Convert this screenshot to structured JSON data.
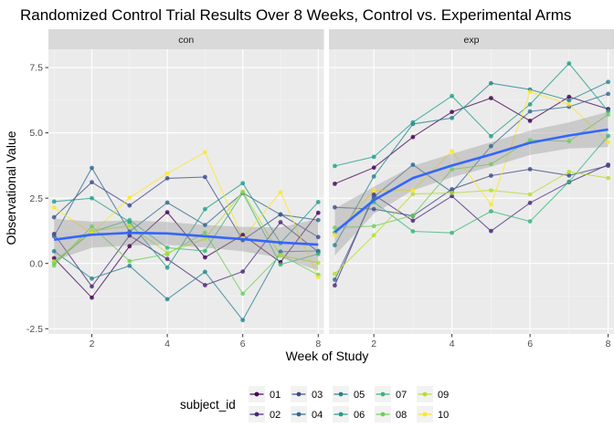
{
  "chart_data": {
    "type": "line",
    "title": "Randomized Control Trial Results Over 8 Weeks, Control vs. Experimental Arms",
    "xlabel": "Week of Study",
    "ylabel": "Observational Value",
    "xlim": [
      0.85,
      8.15
    ],
    "ylim": [
      -2.7,
      8.2
    ],
    "x_ticks": [
      2,
      4,
      6,
      8
    ],
    "y_ticks": [
      -2.5,
      0.0,
      2.5,
      5.0,
      7.5
    ],
    "y_tick_labels": [
      "-2.5",
      "0.0",
      "2.5",
      "5.0",
      "7.5"
    ],
    "grid": true,
    "panel_background": "#ebebeb",
    "strip_background": "#d9d9d9",
    "legend": {
      "title": "subject_id",
      "position": "bottom"
    },
    "smooth_color": "#3366ff",
    "ribbon_color": "#999999",
    "weeks": [
      1,
      2,
      3,
      4,
      5,
      6,
      7,
      8
    ],
    "subjects": [
      {
        "id": "01",
        "color": "#440154"
      },
      {
        "id": "02",
        "color": "#482878"
      },
      {
        "id": "03",
        "color": "#3e4a89"
      },
      {
        "id": "04",
        "color": "#31688e"
      },
      {
        "id": "05",
        "color": "#26828e"
      },
      {
        "id": "06",
        "color": "#1f9e89"
      },
      {
        "id": "07",
        "color": "#35b779"
      },
      {
        "id": "08",
        "color": "#6ece58"
      },
      {
        "id": "09",
        "color": "#b5de2b"
      },
      {
        "id": "10",
        "color": "#fde725"
      }
    ],
    "panels": [
      {
        "label": "con",
        "series": [
          {
            "subject": "01",
            "values": [
              0.2,
              -1.31,
              0.66,
              1.96,
              0.23,
              1.09,
              0.05,
              1.94
            ]
          },
          {
            "subject": "02",
            "values": [
              1.13,
              -0.88,
              1.07,
              0.17,
              -0.83,
              -0.31,
              1.58,
              0.44
            ]
          },
          {
            "subject": "03",
            "values": [
              1.77,
              3.11,
              2.22,
              3.26,
              3.31,
              0.89,
              1.88,
              1.01
            ]
          },
          {
            "subject": "04",
            "values": [
              1.04,
              3.66,
              1.22,
              2.33,
              1.47,
              2.7,
              1.87,
              1.66
            ]
          },
          {
            "subject": "05",
            "values": [
              0.47,
              -0.58,
              -0.09,
              -1.37,
              -0.32,
              -2.17,
              0.45,
              0.48
            ]
          },
          {
            "subject": "06",
            "values": [
              2.37,
              2.5,
              1.59,
              -0.16,
              2.08,
              3.07,
              0.78,
              2.35
            ]
          },
          {
            "subject": "07",
            "values": [
              0.03,
              1.21,
              1.66,
              0.6,
              0.48,
              2.7,
              -0.04,
              0.36
            ]
          },
          {
            "subject": "08",
            "values": [
              -0.08,
              1.42,
              0.09,
              0.36,
              1.18,
              -1.16,
              0.33,
              -0.44
            ]
          },
          {
            "subject": "09",
            "values": [
              0.08,
              1.24,
              1.44,
              0.41,
              0.95,
              2.75,
              0.3,
              0.03
            ]
          },
          {
            "subject": "10",
            "values": [
              2.14,
              1.15,
              2.52,
              3.44,
              4.26,
              0.97,
              2.73,
              -0.53
            ]
          }
        ],
        "smooth": {
          "fit": [
            0.91,
            1.1,
            1.17,
            1.15,
            1.04,
            0.93,
            0.8,
            0.72
          ],
          "lower": [
            0.11,
            0.6,
            0.69,
            0.71,
            0.61,
            0.46,
            0.22,
            -0.27
          ],
          "upper": [
            1.71,
            1.6,
            1.65,
            1.59,
            1.47,
            1.4,
            1.38,
            1.71
          ]
        }
      },
      {
        "label": "exp",
        "series": [
          {
            "subject": "01",
            "values": [
              3.05,
              3.67,
              4.84,
              5.8,
              6.33,
              5.46,
              6.38,
              5.91
            ]
          },
          {
            "subject": "02",
            "values": [
              -0.84,
              2.63,
              1.64,
              2.58,
              1.24,
              2.32,
              3.11,
              3.78
            ]
          },
          {
            "subject": "03",
            "values": [
              2.15,
              2.08,
              1.82,
              2.84,
              3.36,
              3.61,
              3.37,
              3.74
            ]
          },
          {
            "subject": "04",
            "values": [
              -0.62,
              2.54,
              3.78,
              2.73,
              4.49,
              5.82,
              6.0,
              6.49
            ]
          },
          {
            "subject": "05",
            "values": [
              0.7,
              3.33,
              5.34,
              5.57,
              6.9,
              6.66,
              6.24,
              6.95
            ]
          },
          {
            "subject": "06",
            "values": [
              3.73,
              4.08,
              5.4,
              6.41,
              4.87,
              6.09,
              7.66,
              5.83
            ]
          },
          {
            "subject": "07",
            "values": [
              1.18,
              2.35,
              1.23,
              1.17,
              2.0,
              1.61,
              3.13,
              4.88
            ]
          },
          {
            "subject": "08",
            "values": [
              1.37,
              1.43,
              1.84,
              3.6,
              3.8,
              4.72,
              4.68,
              5.7
            ]
          },
          {
            "subject": "09",
            "values": [
              -0.4,
              1.08,
              2.66,
              2.7,
              2.8,
              2.64,
              3.51,
              3.27
            ]
          },
          {
            "subject": "10",
            "values": [
              1.09,
              2.8,
              2.8,
              4.3,
              2.25,
              6.57,
              6.09,
              4.64
            ]
          }
        ],
        "smooth": {
          "fit": [
            1.2,
            2.42,
            3.27,
            3.75,
            4.17,
            4.62,
            4.9,
            5.13
          ],
          "lower": [
            0.3,
            1.9,
            2.8,
            3.3,
            3.7,
            4.15,
            4.4,
            4.45
          ],
          "upper": [
            2.1,
            2.94,
            3.74,
            4.2,
            4.64,
            5.09,
            5.4,
            5.81
          ]
        }
      }
    ]
  }
}
